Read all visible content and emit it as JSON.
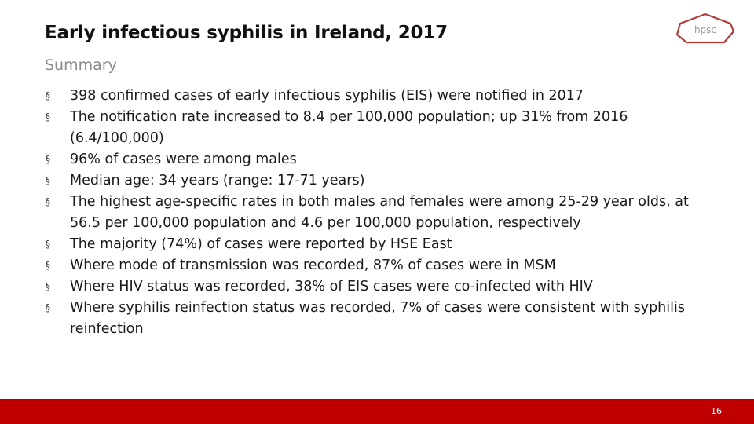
{
  "slide": {
    "title": "Early infectious syphilis in Ireland, 2017",
    "subtitle": "Summary",
    "bullet_symbol": "§",
    "bullets": [
      "398 confirmed cases of early infectious syphilis (EIS) were notified in 2017",
      "The notification rate increased to 8.4 per 100,000 population; up 31% from 2016 (6.4/100,000)",
      "96% of cases were among males",
      "Median age: 34 years (range: 17-71 years)",
      "The highest age-specific rates in both males and females were among 25-29 year olds, at 56.5 per 100,000 population and 4.6 per 100,000 population, respectively",
      "The majority (74%) of cases were reported by HSE East",
      "Where mode of transmission was recorded, 87% of cases were in MSM",
      "Where HIV status was recorded, 38% of EIS cases were co-infected with HIV",
      "Where syphilis reinfection status was recorded, 7% of cases were consistent with syphilis reinfection"
    ]
  },
  "logo": {
    "text": "hpsc",
    "color": "#b03a3a"
  },
  "footer": {
    "page_number": "16",
    "bar_color": "#c00000"
  }
}
